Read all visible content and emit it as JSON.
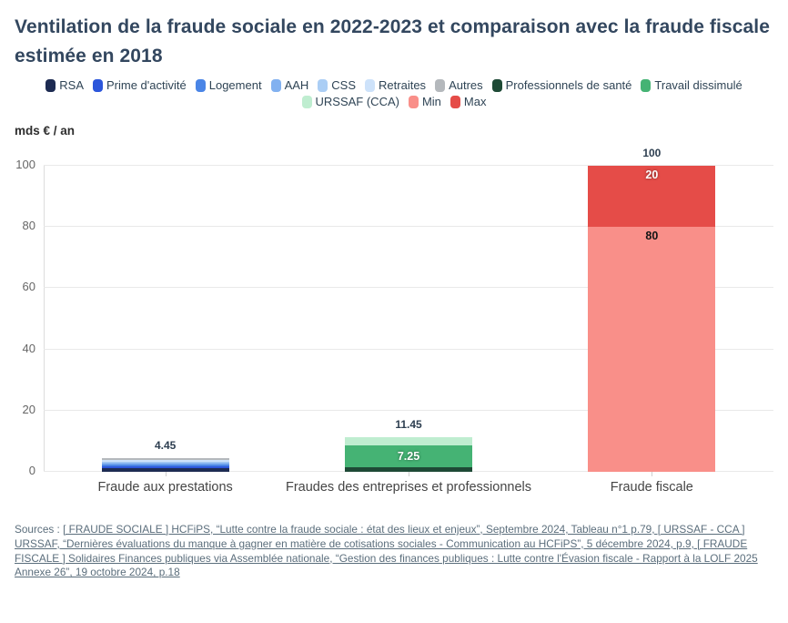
{
  "title": "Ventilation de la fraude sociale en 2022-2023 et comparaison avec la fraude fiscale estimée en 2018",
  "axis_unit": "mds € / an",
  "sources": {
    "prefix": "Sources : ",
    "links_text": "[ FRAUDE SOCIALE ] HCFiPS, “Lutte contre la fraude sociale : état des lieux et enjeux”, Septembre 2024, Tableau n°1 p.79, [ URSSAF - CCA ] URSSAF, “Dernières évaluations du manque à gagner en matière de cotisations sociales - Communication au HCFiPS”, 5 décembre 2024, p.9, [ FRAUDE FISCALE ] Solidaires Finances publiques via Assemblée nationale, “Gestion des finances publiques : Lutte contre l'Évasion fiscale - Rapport à la LOLF 2025 Annexe 26”, 19 octobre 2024, p.18"
  },
  "chart_data": {
    "type": "bar",
    "subtype": "stacked-vertical",
    "unit": "mds € / an",
    "categories": [
      "Fraude aux prestations",
      "Fraudes des entreprises et professionnels",
      "Fraude fiscale"
    ],
    "ylim": [
      0,
      100
    ],
    "yticks": [
      0,
      20,
      40,
      60,
      80,
      100
    ],
    "grid": true,
    "legend_position": "top-center",
    "series": [
      {
        "name": "RSA",
        "color": "#1d2b52",
        "values": [
          1.2,
          0,
          0
        ]
      },
      {
        "name": "Prime d'activité",
        "color": "#2c56db",
        "values": [
          0.7,
          0,
          0
        ]
      },
      {
        "name": "Logement",
        "color": "#4a85e6",
        "values": [
          0.5,
          0,
          0
        ]
      },
      {
        "name": "AAH",
        "color": "#82b1f0",
        "values": [
          0.5,
          0,
          0
        ]
      },
      {
        "name": "CSS",
        "color": "#abcef5",
        "values": [
          0.35,
          0,
          0
        ]
      },
      {
        "name": "Retraites",
        "color": "#cde2fa",
        "values": [
          0.6,
          0,
          0
        ]
      },
      {
        "name": "Autres",
        "color": "#b4b8bc",
        "values": [
          0.6,
          0,
          0
        ]
      },
      {
        "name": "Professionnels de santé",
        "color": "#1e4a36",
        "values": [
          0,
          1.5,
          0
        ]
      },
      {
        "name": "Travail dissimulé",
        "color": "#45b374",
        "values": [
          0,
          7.25,
          0
        ]
      },
      {
        "name": "URSSAF (CCA)",
        "color": "#bfedd0",
        "values": [
          0,
          2.7,
          0
        ]
      },
      {
        "name": "Min",
        "color": "#f98f89",
        "values": [
          0,
          0,
          80
        ]
      },
      {
        "name": "Max",
        "color": "#e54c48",
        "values": [
          0,
          0,
          20
        ]
      }
    ],
    "totals": [
      "4.45",
      "11.45",
      "100"
    ],
    "segment_labels": [
      {
        "series": "Travail dissimulé",
        "bar": 1,
        "text": "7.25",
        "color": "#ffffff",
        "valign": "center"
      },
      {
        "series": "Max",
        "bar": 2,
        "text": "20",
        "color": "#ffffff",
        "valign": "top"
      },
      {
        "series": "Min",
        "bar": 2,
        "text": "80",
        "color": "#141414",
        "valign": "top"
      }
    ]
  }
}
